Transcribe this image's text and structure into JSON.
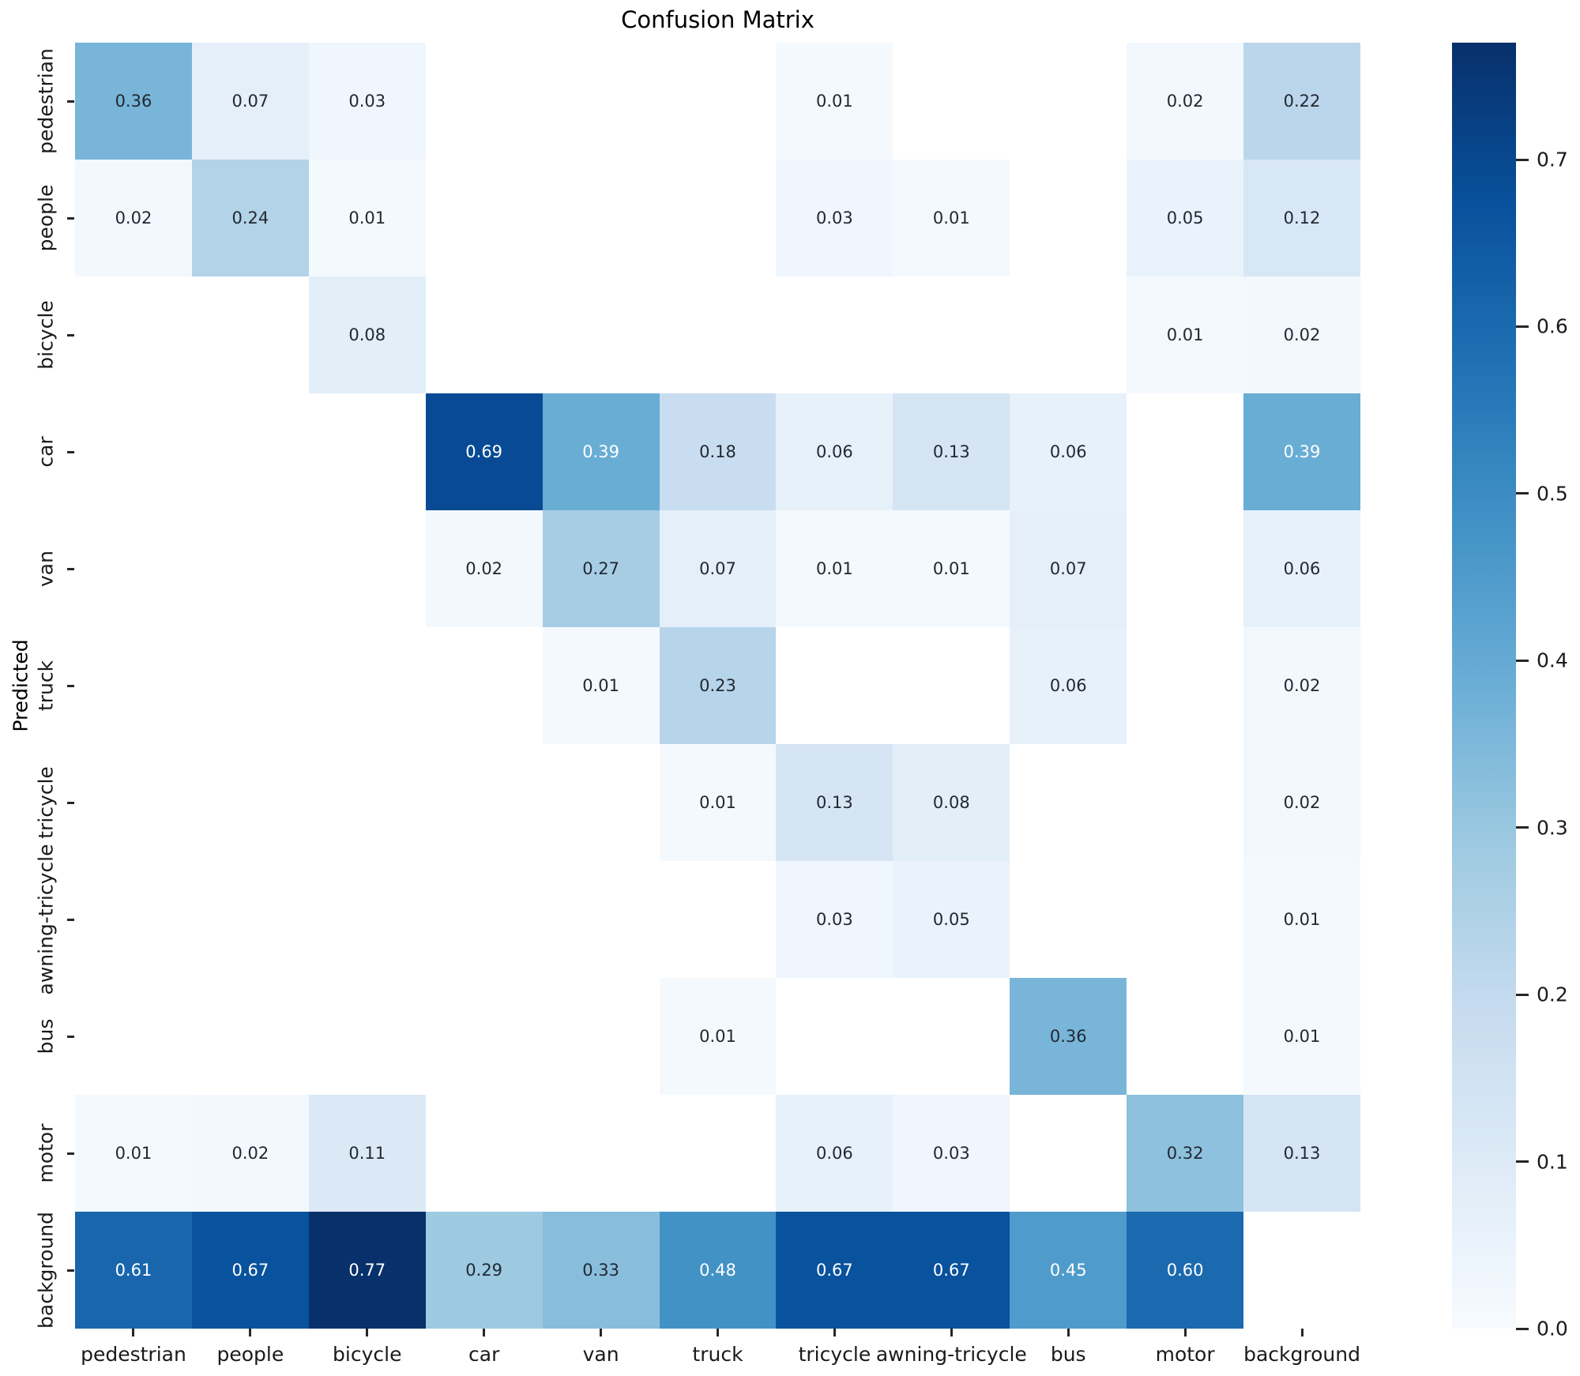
{
  "chart_data": {
    "type": "heatmap",
    "title": "Confusion Matrix",
    "xlabel": "",
    "ylabel": "Predicted",
    "categories_x": [
      "pedestrian",
      "people",
      "bicycle",
      "car",
      "van",
      "truck",
      "tricycle",
      "awning-tricycle",
      "bus",
      "motor",
      "background"
    ],
    "categories_y": [
      "pedestrian",
      "people",
      "bicycle",
      "car",
      "van",
      "truck",
      "tricycle",
      "awning-tricycle",
      "bus",
      "motor",
      "background"
    ],
    "matrix": [
      [
        0.36,
        0.07,
        0.03,
        null,
        null,
        null,
        0.01,
        null,
        null,
        0.02,
        0.22
      ],
      [
        0.02,
        0.24,
        0.01,
        null,
        null,
        null,
        0.03,
        0.01,
        null,
        0.05,
        0.12
      ],
      [
        null,
        null,
        0.08,
        null,
        null,
        null,
        null,
        null,
        null,
        0.01,
        0.02
      ],
      [
        null,
        null,
        null,
        0.69,
        0.39,
        0.18,
        0.06,
        0.13,
        0.06,
        null,
        0.39
      ],
      [
        null,
        null,
        null,
        0.02,
        0.27,
        0.07,
        0.01,
        0.01,
        0.07,
        null,
        0.06
      ],
      [
        null,
        null,
        null,
        null,
        0.01,
        0.23,
        null,
        null,
        0.06,
        null,
        0.02
      ],
      [
        null,
        null,
        null,
        null,
        null,
        0.01,
        0.13,
        0.08,
        null,
        null,
        0.02
      ],
      [
        null,
        null,
        null,
        null,
        null,
        null,
        0.03,
        0.05,
        null,
        null,
        0.01
      ],
      [
        null,
        null,
        null,
        null,
        null,
        0.01,
        null,
        null,
        0.36,
        null,
        0.01
      ],
      [
        0.01,
        0.02,
        0.11,
        null,
        null,
        null,
        0.06,
        0.03,
        null,
        0.32,
        0.13
      ],
      [
        0.61,
        0.67,
        0.77,
        0.29,
        0.33,
        0.48,
        0.67,
        0.67,
        0.45,
        0.6,
        null
      ]
    ],
    "annotation_format": "0.2f",
    "colormap": "Blues",
    "vmin": 0.0,
    "vmax": 0.77,
    "masked_cells_rendered_white": true,
    "grid": false,
    "legend": "colorbar-right",
    "colorbar": {
      "position": "right",
      "ticks": [
        0.0,
        0.1,
        0.2,
        0.3,
        0.4,
        0.5,
        0.6,
        0.7
      ]
    },
    "colors": {
      "cmap_stops": [
        "#f7fbff",
        "#deebf7",
        "#c6dbef",
        "#9ecae1",
        "#6baed6",
        "#4292c6",
        "#2171b5",
        "#08519c",
        "#08306b"
      ],
      "annotation_dark": "#222831",
      "annotation_light": "#ffffff",
      "masked_cell": "#ffffff",
      "tick_color": "#262626",
      "background": "#ffffff"
    }
  }
}
